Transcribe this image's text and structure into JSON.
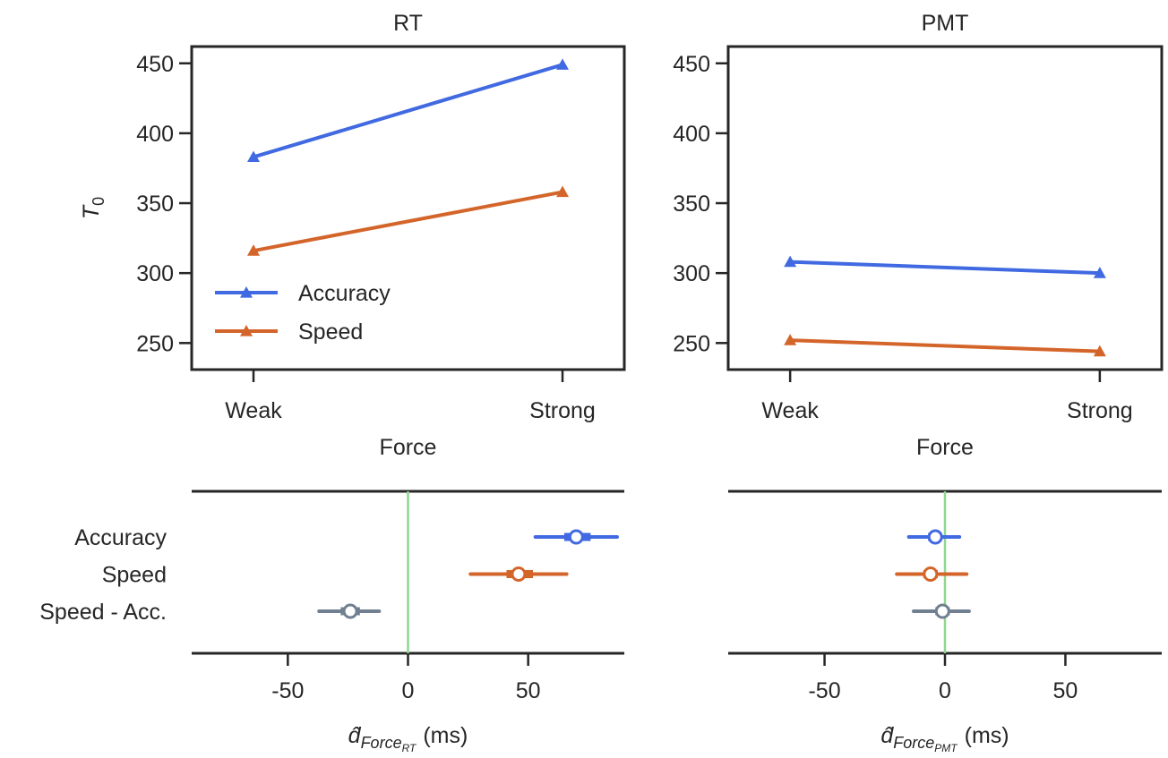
{
  "chart_data": [
    {
      "type": "line",
      "title": "RT",
      "ylabel": {
        "base": "T",
        "sub": "0"
      },
      "xlabel": "Force",
      "categories": [
        "Weak",
        "Strong"
      ],
      "series": [
        {
          "name": "Accuracy",
          "color": "#4169e1",
          "values": [
            383,
            449
          ]
        },
        {
          "name": "Speed",
          "color": "#d4652a",
          "values": [
            316,
            358
          ]
        }
      ],
      "ylim": [
        231,
        462
      ],
      "yticks": [
        250,
        300,
        350,
        400,
        450
      ],
      "legend": "lower left"
    },
    {
      "type": "line",
      "title": "PMT",
      "xlabel": "Force",
      "categories": [
        "Weak",
        "Strong"
      ],
      "series": [
        {
          "color": "#4169e1",
          "values": [
            308,
            300
          ]
        },
        {
          "color": "#d4652a",
          "values": [
            252,
            244
          ]
        }
      ],
      "ylim": [
        231,
        462
      ],
      "yticks": [
        250,
        300,
        350,
        400,
        450
      ]
    },
    {
      "type": "forest",
      "categories": [
        "Accuracy",
        "Speed",
        "Speed - Acc."
      ],
      "values": [
        70,
        46,
        -24
      ],
      "lower": [
        53,
        26,
        -37
      ],
      "upper": [
        87,
        66,
        -12
      ],
      "inner_lower": [
        65,
        41,
        -28
      ],
      "inner_upper": [
        76,
        52,
        -20
      ],
      "colors": [
        "#4169e1",
        "#d4652a",
        "#708090"
      ],
      "xlim": [
        -90,
        90
      ],
      "xticks": [
        -50,
        0,
        50
      ],
      "refline": {
        "value": 0,
        "color": "#8fd68f"
      },
      "xlabel": {
        "base": "d̂",
        "sub": "Force",
        "subsub": "RT",
        "unit": "(ms)"
      }
    },
    {
      "type": "forest",
      "values": [
        -4,
        -6,
        -1
      ],
      "lower": [
        -15,
        -20,
        -13
      ],
      "upper": [
        6,
        9,
        10
      ],
      "inner_lower": [
        -7,
        -9,
        -4
      ],
      "inner_upper": [
        -2,
        -3,
        2
      ],
      "colors": [
        "#4169e1",
        "#d4652a",
        "#708090"
      ],
      "xlim": [
        -90,
        90
      ],
      "xticks": [
        -50,
        0,
        50
      ],
      "refline": {
        "value": 0,
        "color": "#8fd68f"
      },
      "xlabel": {
        "base": "d̂",
        "sub": "Force",
        "subsub": "PMT",
        "unit": "(ms)"
      }
    }
  ]
}
